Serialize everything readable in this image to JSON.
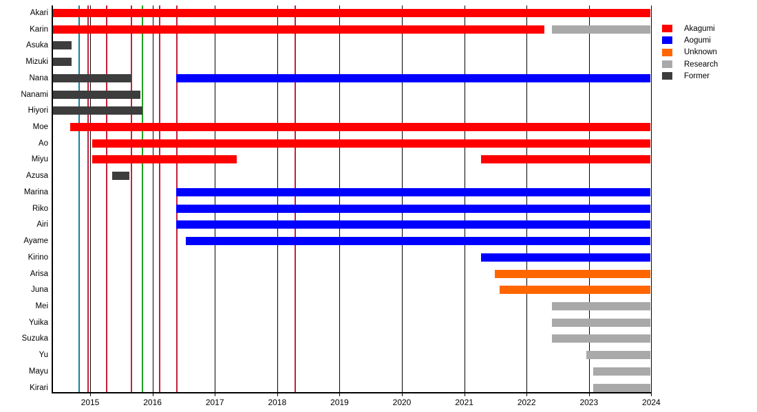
{
  "chart_data": {
    "type": "gantt-timeline",
    "title": "",
    "x_axis": {
      "tick_years": [
        2015,
        2016,
        2017,
        2018,
        2019,
        2020,
        2021,
        2022,
        2023,
        2024
      ],
      "range_start": 2014.39,
      "range_end": 2024.0,
      "grid": "vertical-year-lines"
    },
    "legend": [
      {
        "label": "Akagumi",
        "color": "#FF0000"
      },
      {
        "label": "Aogumi",
        "color": "#0000FF"
      },
      {
        "label": "Unknown",
        "color": "#FF6600"
      },
      {
        "label": "Research",
        "color": "#A9A9A9"
      },
      {
        "label": "Former",
        "color": "#3D3D3D"
      }
    ],
    "rows": [
      {
        "name": "Akari",
        "segments": [
          {
            "team": "Akagumi",
            "start": 2014.4,
            "end": 2023.99
          }
        ]
      },
      {
        "name": "Karin",
        "segments": [
          {
            "team": "Akagumi",
            "start": 2014.4,
            "end": 2022.28
          },
          {
            "team": "Research",
            "start": 2022.41,
            "end": 2023.99
          }
        ]
      },
      {
        "name": "Asuka",
        "segments": [
          {
            "team": "Former",
            "start": 2014.4,
            "end": 2014.7
          }
        ]
      },
      {
        "name": "Mizuki",
        "segments": [
          {
            "team": "Former",
            "start": 2014.4,
            "end": 2014.7
          }
        ]
      },
      {
        "name": "Nana",
        "segments": [
          {
            "team": "Former",
            "start": 2014.4,
            "end": 2015.66
          },
          {
            "team": "Aogumi",
            "start": 2016.38,
            "end": 2023.99
          }
        ]
      },
      {
        "name": "Nanami",
        "segments": [
          {
            "team": "Former",
            "start": 2014.4,
            "end": 2015.81
          }
        ]
      },
      {
        "name": "Hiyori",
        "segments": [
          {
            "team": "Former",
            "start": 2014.4,
            "end": 2015.84
          }
        ]
      },
      {
        "name": "Moe",
        "segments": [
          {
            "team": "Akagumi",
            "start": 2014.68,
            "end": 2023.99
          }
        ]
      },
      {
        "name": "Ao",
        "segments": [
          {
            "team": "Akagumi",
            "start": 2015.03,
            "end": 2023.99
          }
        ]
      },
      {
        "name": "Miyu",
        "segments": [
          {
            "team": "Akagumi",
            "start": 2015.03,
            "end": 2017.35
          },
          {
            "team": "Akagumi",
            "start": 2021.27,
            "end": 2023.99
          }
        ]
      },
      {
        "name": "Azusa",
        "segments": [
          {
            "team": "Former",
            "start": 2015.35,
            "end": 2015.63
          }
        ]
      },
      {
        "name": "Marina",
        "segments": [
          {
            "team": "Aogumi",
            "start": 2016.38,
            "end": 2023.99
          }
        ]
      },
      {
        "name": "Riko",
        "segments": [
          {
            "team": "Aogumi",
            "start": 2016.38,
            "end": 2023.99
          }
        ]
      },
      {
        "name": "Airi",
        "segments": [
          {
            "team": "Aogumi",
            "start": 2016.38,
            "end": 2023.99
          }
        ]
      },
      {
        "name": "Ayame",
        "segments": [
          {
            "team": "Aogumi",
            "start": 2016.53,
            "end": 2023.99
          }
        ]
      },
      {
        "name": "Kirino",
        "segments": [
          {
            "team": "Aogumi",
            "start": 2021.27,
            "end": 2023.99
          }
        ]
      },
      {
        "name": "Arisa",
        "segments": [
          {
            "team": "Unknown",
            "start": 2021.49,
            "end": 2023.99
          }
        ]
      },
      {
        "name": "Juna",
        "segments": [
          {
            "team": "Unknown",
            "start": 2021.57,
            "end": 2023.99
          }
        ]
      },
      {
        "name": "Mei",
        "segments": [
          {
            "team": "Research",
            "start": 2022.41,
            "end": 2023.99
          }
        ]
      },
      {
        "name": "Yuika",
        "segments": [
          {
            "team": "Research",
            "start": 2022.41,
            "end": 2023.99
          }
        ]
      },
      {
        "name": "Suzuka",
        "segments": [
          {
            "team": "Research",
            "start": 2022.41,
            "end": 2023.99
          }
        ]
      },
      {
        "name": "Yu",
        "segments": [
          {
            "team": "Research",
            "start": 2022.96,
            "end": 2023.99
          }
        ]
      },
      {
        "name": "Mayu",
        "segments": [
          {
            "team": "Research",
            "start": 2023.07,
            "end": 2023.99
          }
        ]
      },
      {
        "name": "Kirari",
        "segments": [
          {
            "team": "Research",
            "start": 2023.07,
            "end": 2023.99
          }
        ]
      }
    ],
    "event_lines": [
      {
        "year": 2014.82,
        "color": "#1380A1"
      },
      {
        "year": 2014.97,
        "color": "#C41E3A"
      },
      {
        "year": 2015.26,
        "color": "#C41E3A"
      },
      {
        "year": 2015.66,
        "color": "#C41E3A"
      },
      {
        "year": 2015.84,
        "color": "#1FA11F"
      },
      {
        "year": 2016.12,
        "color": "#C41E3A"
      },
      {
        "year": 2016.39,
        "color": "#C41E3A"
      },
      {
        "year": 2018.29,
        "color": "#C41E3A"
      }
    ],
    "colors": {
      "gridline": "#000000",
      "axis": "#000000",
      "background": "#FFFFFF"
    }
  }
}
